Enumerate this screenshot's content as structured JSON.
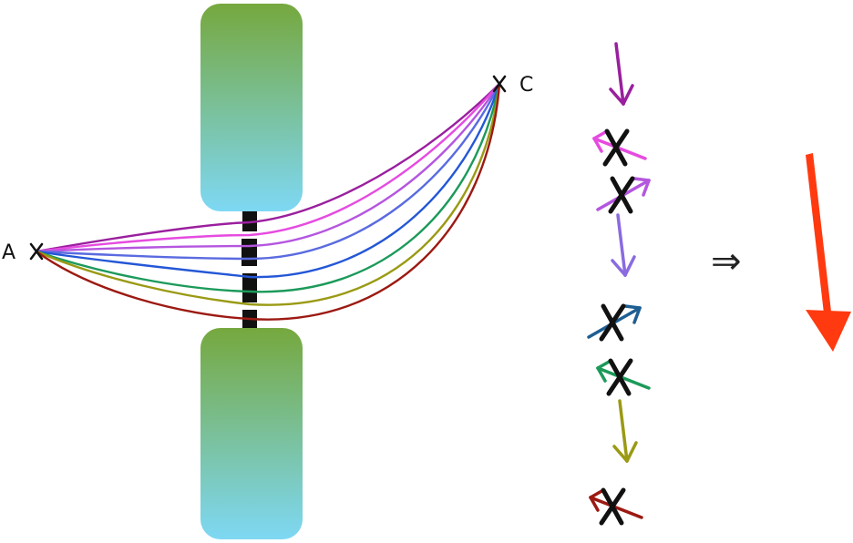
{
  "labels": {
    "point_a": "A",
    "point_c": "C",
    "implies": "⇒"
  },
  "colors": {
    "paddle_top": "#76a83e",
    "paddle_bottom": "#7ed8f4",
    "slit": "#111111",
    "cross": "#111111",
    "net_arrow": "#ff3a10"
  },
  "paths": [
    {
      "color": "#9a1f9e",
      "reaches": "C"
    },
    {
      "color": "#e64be0",
      "reaches": "C"
    },
    {
      "color": "#b556df",
      "reaches": "C"
    },
    {
      "color": "#5a6be0",
      "reaches": "C"
    },
    {
      "color": "#2457d6",
      "reaches": "C"
    },
    {
      "color": "#1c9a5a",
      "reaches": "C"
    },
    {
      "color": "#9a9a14",
      "reaches": "C"
    },
    {
      "color": "#9c1a12",
      "reaches": "C"
    }
  ],
  "phasors": [
    {
      "color": "#9a1f9e",
      "state": "down",
      "crossed": false
    },
    {
      "color": "#e64be0",
      "state": "cancel",
      "crossed": true
    },
    {
      "color": "#b556df",
      "state": "cancel",
      "crossed": true
    },
    {
      "color": "#8a6be0",
      "state": "down",
      "crossed": false
    },
    {
      "color": "#1e5e92",
      "state": "cancel",
      "crossed": true
    },
    {
      "color": "#1c9a5a",
      "state": "cancel",
      "crossed": true
    },
    {
      "color": "#9a9a14",
      "state": "down",
      "crossed": false
    },
    {
      "color": "#9c1a12",
      "state": "cancel",
      "crossed": true
    }
  ]
}
